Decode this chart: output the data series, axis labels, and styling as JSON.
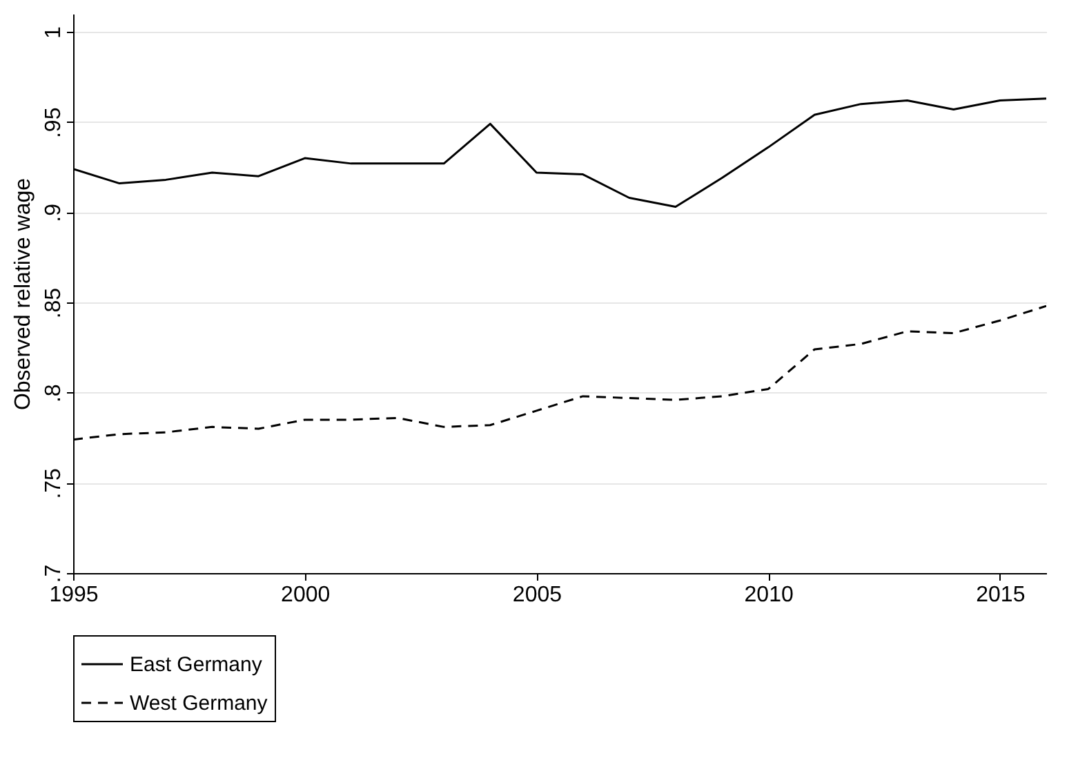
{
  "chart_data": {
    "type": "line",
    "ylabel": "Observed relative wage",
    "x": [
      1995,
      1996,
      1997,
      1998,
      1999,
      2000,
      2001,
      2002,
      2003,
      2004,
      2005,
      2006,
      2007,
      2008,
      2009,
      2010,
      2011,
      2012,
      2013,
      2014,
      2015,
      2016
    ],
    "series": [
      {
        "name": "East Germany",
        "color": "#000000",
        "line_style": "solid",
        "values": [
          0.924,
          0.916,
          0.918,
          0.922,
          0.92,
          0.93,
          0.927,
          0.927,
          0.927,
          0.949,
          0.922,
          0.921,
          0.908,
          0.903,
          0.919,
          0.936,
          0.954,
          0.96,
          0.962,
          0.957,
          0.962,
          0.963
        ]
      },
      {
        "name": "West Germany",
        "color": "#000000",
        "line_style": "dashed",
        "values": [
          0.774,
          0.777,
          0.778,
          0.781,
          0.78,
          0.785,
          0.785,
          0.786,
          0.781,
          0.782,
          0.79,
          0.798,
          0.797,
          0.796,
          0.798,
          0.802,
          0.824,
          0.827,
          0.834,
          0.833,
          0.84,
          0.848
        ]
      }
    ],
    "xlim": [
      1995,
      2016
    ],
    "xticks": [
      1995,
      2000,
      2005,
      2010,
      2015
    ],
    "ylim": [
      0.7,
      1.01
    ],
    "yticks": [
      {
        "value": 0.7,
        "label": ".7"
      },
      {
        "value": 0.75,
        "label": ".75"
      },
      {
        "value": 0.8,
        "label": ".8"
      },
      {
        "value": 0.85,
        "label": ".85"
      },
      {
        "value": 0.9,
        "label": ".9"
      },
      {
        "value": 0.95,
        "label": ".95"
      },
      {
        "value": 1,
        "label": "1"
      }
    ],
    "grid": "y",
    "legend": "bottom",
    "marker": "none"
  }
}
